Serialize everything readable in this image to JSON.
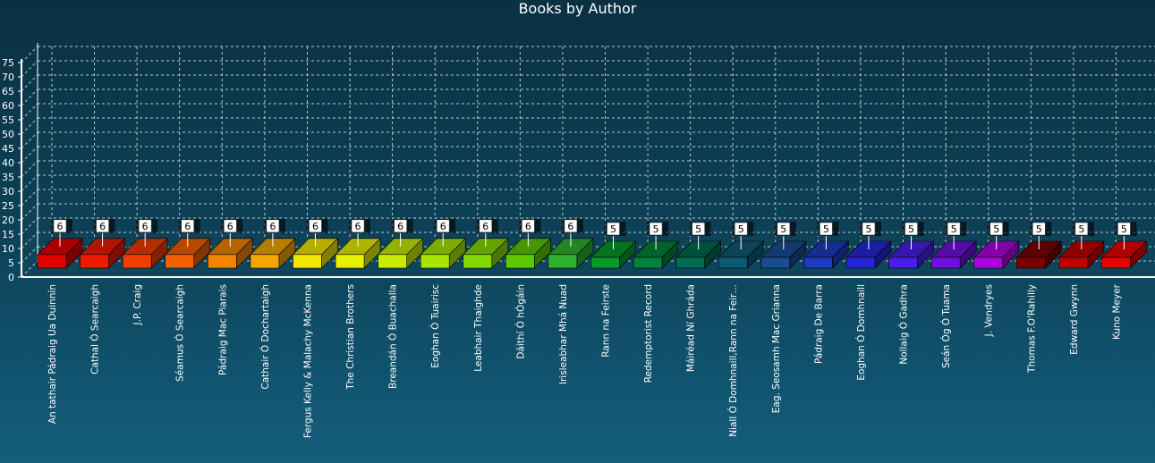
{
  "chart_data": {
    "type": "bar",
    "title": "Books by Author",
    "xlabel": "",
    "ylabel": "",
    "ylim": [
      0,
      75
    ],
    "yticks": [
      0,
      5,
      10,
      15,
      20,
      25,
      30,
      35,
      40,
      45,
      50,
      55,
      60,
      65,
      70,
      75
    ],
    "grid": true,
    "categories": [
      "An tathair Pádraig Ua Duinnín",
      "Cathal Ó Searcaigh",
      "J.P. Craig",
      "Séamus Ó Searcaigh",
      "Pádraig Mac Piarais",
      "Cathair Ó Dochartaigh",
      "Fergus Kelly & Malachy McKenna",
      "The Christian Brothers",
      "Breandán Ó Buachalla",
      "Eoghan Ó Tuairisc",
      "Leabhair Thaighde",
      "Dáithí Ó hÓgáin",
      "Irisleabhar Mhá Nuad",
      "Rann na Feirste",
      "Redemptorist Record",
      "Máiréad Ní Ghráda",
      "Niall Ó Domhnaill,Rann na Feir…",
      "Eag. Seosamh Mac Grianna",
      "Pádraig De Barra",
      "Eoghan Ó Domhnaill",
      "Nollaig Ó Gadhra",
      "Seán Óg Ó Tuama",
      "J. Vendryes",
      "Thomas F.O'Rahilly",
      "Edward Gwynn",
      "Kuno Meyer"
    ],
    "values": [
      6,
      6,
      6,
      6,
      6,
      6,
      6,
      6,
      6,
      6,
      6,
      6,
      6,
      5,
      5,
      5,
      5,
      5,
      5,
      5,
      5,
      5,
      5,
      5,
      5,
      5
    ],
    "colors": [
      "#e00000",
      "#ec1a00",
      "#f03c00",
      "#f26000",
      "#f28400",
      "#f3a600",
      "#f2e600",
      "#e6f000",
      "#c8ec00",
      "#a8e400",
      "#84d800",
      "#5cc800",
      "#2eb02e",
      "#079a2a",
      "#00843a",
      "#006b50",
      "#0e5a74",
      "#1a4c94",
      "#1c3cc0",
      "#2626d8",
      "#4a1ee8",
      "#7010e0",
      "#b000e0",
      "#7a0000",
      "#c00000",
      "#e80000"
    ]
  }
}
